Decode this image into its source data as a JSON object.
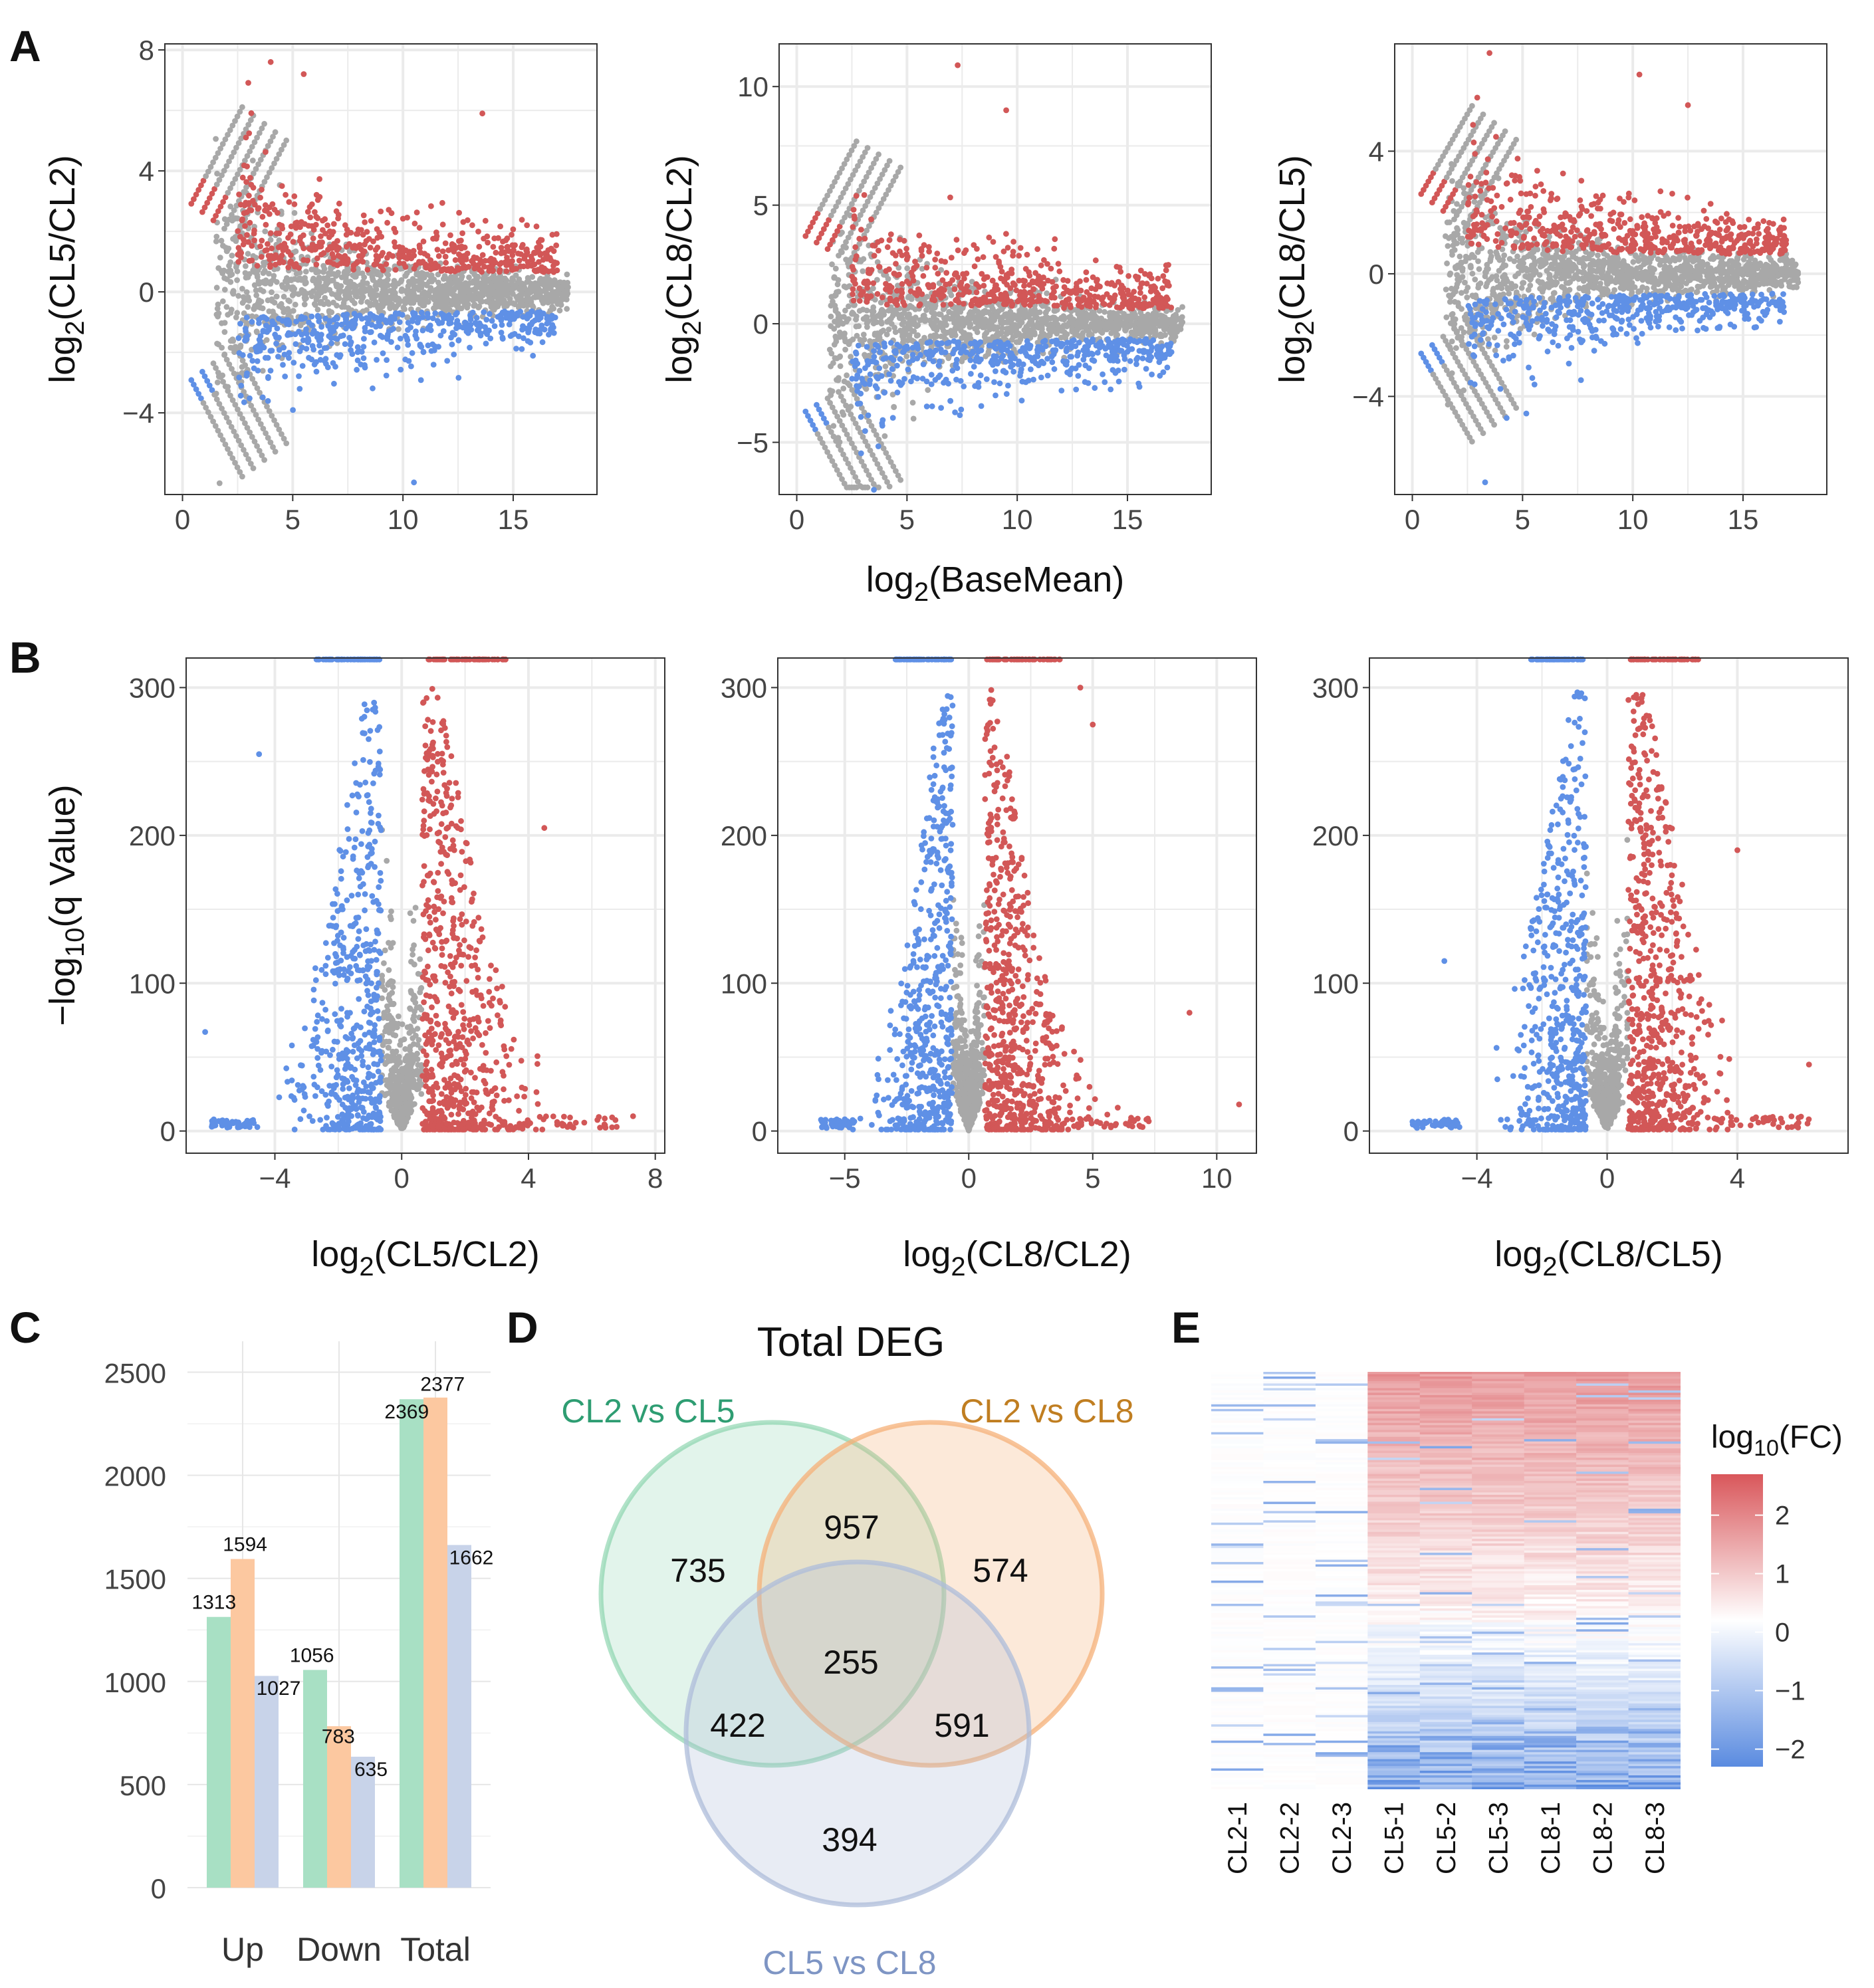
{
  "panel_letters": [
    "A",
    "B",
    "C",
    "D",
    "E"
  ],
  "colors": {
    "up": "#d25757",
    "down": "#5f90e6",
    "ns": "#a8a8a8",
    "grid": "#ebebeb",
    "bar_series": [
      "#a8e0c4",
      "#fcc8a0",
      "#c8d3e9"
    ],
    "venn": [
      "#7dcfa3",
      "#f6b078",
      "#adbcd9"
    ],
    "venn_labels": [
      "#2e9d72",
      "#c07e21",
      "#7e95c4"
    ],
    "heat_low": "#5a8be0",
    "heat_mid": "#ffffff",
    "heat_high": "#d9575b"
  },
  "chart_data": [
    {
      "panel": "A",
      "type": "scatter",
      "subtype": "MA plot",
      "ylabel": "log2(CL5/CL2)",
      "xlabel": "",
      "xlim": [
        -0.8,
        18.8
      ],
      "ylim": [
        -6.7,
        8.2
      ],
      "xticks": [
        0,
        5,
        10,
        15
      ],
      "yticks": [
        -4,
        0,
        4,
        8
      ],
      "xtick_labels": [
        "0",
        "5",
        "10",
        "15"
      ],
      "ytick_labels": [
        "−4",
        "0",
        "4",
        "8"
      ],
      "series": [
        {
          "name": "up",
          "color": "up",
          "description": "significantly up-regulated, y approx 0.6 to 7.6"
        },
        {
          "name": "down",
          "color": "down",
          "description": "significantly down-regulated, y approx -0.6 to -6.3"
        },
        {
          "name": "not significant",
          "color": "ns",
          "description": "bulk centered at 0"
        }
      ],
      "notable_points": [
        {
          "x": 4.0,
          "y": 7.6
        },
        {
          "x": 5.5,
          "y": 7.2
        },
        {
          "x": 10.5,
          "y": -6.3
        },
        {
          "x": 13.6,
          "y": 5.9
        }
      ]
    },
    {
      "panel": "A",
      "type": "scatter",
      "subtype": "MA plot",
      "ylabel": "log2(CL8/CL2)",
      "xlabel": "log2(BaseMean)",
      "xlim": [
        -0.8,
        18.8
      ],
      "ylim": [
        -7.2,
        11.8
      ],
      "xticks": [
        0,
        5,
        10,
        15
      ],
      "yticks": [
        -5,
        0,
        5,
        10
      ],
      "xtick_labels": [
        "0",
        "5",
        "10",
        "15"
      ],
      "ytick_labels": [
        "−5",
        "0",
        "5",
        "10"
      ],
      "notable_points": [
        {
          "x": 7.3,
          "y": 10.9
        },
        {
          "x": 9.5,
          "y": 9.0
        },
        {
          "x": 3.5,
          "y": -7.0
        }
      ]
    },
    {
      "panel": "A",
      "type": "scatter",
      "subtype": "MA plot",
      "ylabel": "log2(CL8/CL5)",
      "xlabel": "",
      "xlim": [
        -0.8,
        18.8
      ],
      "ylim": [
        -7.2,
        7.5
      ],
      "xticks": [
        0,
        5,
        10,
        15
      ],
      "yticks": [
        -4,
        0,
        4
      ],
      "xtick_labels": [
        "0",
        "5",
        "10",
        "15"
      ],
      "ytick_labels": [
        "−4",
        "0",
        "4"
      ],
      "notable_points": [
        {
          "x": 3.5,
          "y": 7.2
        },
        {
          "x": 10.3,
          "y": 6.5
        },
        {
          "x": 12.5,
          "y": 5.5
        },
        {
          "x": 3.3,
          "y": -6.8
        }
      ]
    },
    {
      "panel": "B",
      "type": "scatter",
      "subtype": "volcano plot",
      "xlabel": "log2(CL5/CL2)",
      "ylabel": "−log10(q Value)",
      "xlim": [
        -6.8,
        8.3
      ],
      "ylim": [
        -15,
        320
      ],
      "xticks": [
        -4,
        0,
        4,
        8
      ],
      "yticks": [
        0,
        100,
        200,
        300
      ],
      "xtick_labels": [
        "−4",
        "0",
        "4",
        "8"
      ],
      "ytick_labels": [
        "0",
        "100",
        "200",
        "300"
      ],
      "series": [
        {
          "name": "up",
          "color": "up",
          "x_range": [
            0.6,
            7.5
          ]
        },
        {
          "name": "down",
          "color": "down",
          "x_range": [
            -6.3,
            -0.6
          ]
        },
        {
          "name": "not significant",
          "color": "ns",
          "x_range": [
            -0.6,
            0.6
          ]
        }
      ],
      "notable_points": [
        {
          "x": -6.2,
          "y": 67
        },
        {
          "x": -4.5,
          "y": 255
        },
        {
          "x": 4.5,
          "y": 205
        },
        {
          "x": 7.3,
          "y": 10
        }
      ]
    },
    {
      "panel": "B",
      "type": "scatter",
      "subtype": "volcano plot",
      "xlabel": "log2(CL8/CL2)",
      "ylabel": "",
      "xlim": [
        -7.7,
        11.6
      ],
      "ylim": [
        -15,
        320
      ],
      "xticks": [
        -5,
        0,
        5,
        10
      ],
      "yticks": [
        0,
        100,
        200,
        300
      ],
      "xtick_labels": [
        "−5",
        "0",
        "5",
        "10"
      ],
      "ytick_labels": [
        "0",
        "100",
        "200",
        "300"
      ],
      "notable_points": [
        {
          "x": 4.5,
          "y": 300
        },
        {
          "x": 5.0,
          "y": 275
        },
        {
          "x": 8.9,
          "y": 80
        },
        {
          "x": 10.9,
          "y": 18
        }
      ]
    },
    {
      "panel": "B",
      "type": "scatter",
      "subtype": "volcano plot",
      "xlabel": "log2(CL8/CL5)",
      "ylabel": "",
      "xlim": [
        -7.3,
        7.4
      ],
      "ylim": [
        -15,
        320
      ],
      "xticks": [
        -4,
        0,
        4
      ],
      "yticks": [
        0,
        100,
        200,
        300
      ],
      "xtick_labels": [
        "−4",
        "0",
        "4"
      ],
      "ytick_labels": [
        "0",
        "100",
        "200",
        "300"
      ],
      "notable_points": [
        {
          "x": -5.0,
          "y": 115
        },
        {
          "x": 4.0,
          "y": 190
        },
        {
          "x": 6.2,
          "y": 45
        }
      ]
    },
    {
      "panel": "C",
      "type": "bar",
      "categories": [
        "Up",
        "Down",
        "Total"
      ],
      "series": [
        {
          "name": "CL2 vs CL5",
          "values": [
            1313,
            1056,
            2369
          ]
        },
        {
          "name": "CL2 vs CL8",
          "values": [
            1594,
            783,
            2377
          ]
        },
        {
          "name": "CL5 vs CL8",
          "values": [
            1027,
            635,
            1662
          ]
        }
      ],
      "ylim": [
        0,
        2650
      ],
      "yticks": [
        0,
        500,
        1000,
        1500,
        2000,
        2500
      ],
      "ytick_labels": [
        "0",
        "500",
        "1000",
        "1500",
        "2000",
        "2500"
      ],
      "data_labels": [
        [
          "1313",
          "1594",
          "1027"
        ],
        [
          "1056",
          "783",
          "635"
        ],
        [
          "2369",
          "2377",
          "1662"
        ]
      ],
      "title": "",
      "xlabel": "",
      "ylabel": ""
    },
    {
      "panel": "D",
      "type": "venn",
      "title": "Total DEG",
      "sets": [
        "CL2 vs CL5",
        "CL2 vs CL8",
        "CL5 vs CL8"
      ],
      "regions": [
        {
          "sets": [
            "CL2 vs CL5"
          ],
          "value": 735
        },
        {
          "sets": [
            "CL2 vs CL8"
          ],
          "value": 574
        },
        {
          "sets": [
            "CL5 vs CL8"
          ],
          "value": 394
        },
        {
          "sets": [
            "CL2 vs CL5",
            "CL2 vs CL8"
          ],
          "value": 957
        },
        {
          "sets": [
            "CL2 vs CL5",
            "CL5 vs CL8"
          ],
          "value": 422
        },
        {
          "sets": [
            "CL2 vs CL8",
            "CL5 vs CL8"
          ],
          "value": 591
        },
        {
          "sets": [
            "CL2 vs CL5",
            "CL2 vs CL8",
            "CL5 vs CL8"
          ],
          "value": 255
        }
      ]
    },
    {
      "panel": "E",
      "type": "heatmap",
      "columns": [
        "CL2-1",
        "CL2-2",
        "CL2-3",
        "CL5-1",
        "CL5-2",
        "CL5-3",
        "CL8-1",
        "CL8-2",
        "CL8-3"
      ],
      "legend_title": "log10(FC)",
      "legend_ticks": [
        2,
        1,
        0,
        -1,
        -2
      ],
      "legend_tick_labels": [
        "2",
        "1",
        "0",
        "−1",
        "−2"
      ],
      "legend_range": [
        -2.3,
        2.7
      ],
      "description": "CL2 columns near 0 (white) with sparse blue rows; CL5 and CL8 columns red at top grading to white then blue at bottom"
    }
  ]
}
